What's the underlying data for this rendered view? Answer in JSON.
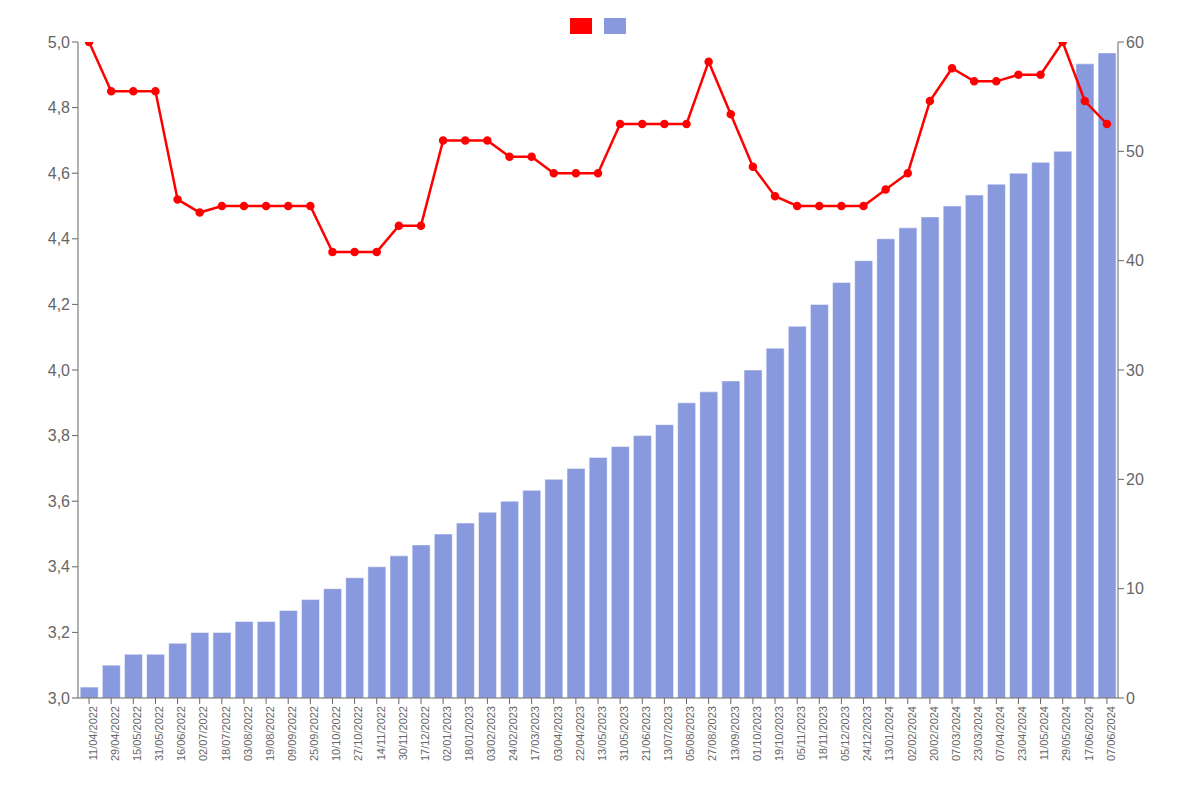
{
  "chart_data": {
    "type": "bar",
    "categories": [
      "11/04/2022",
      "29/04/2022",
      "15/05/2022",
      "31/05/2022",
      "16/06/2022",
      "02/07/2022",
      "18/07/2022",
      "03/08/2022",
      "19/08/2022",
      "09/09/2022",
      "25/09/2022",
      "10/10/2022",
      "27/10/2022",
      "14/11/2022",
      "30/11/2022",
      "17/12/2022",
      "02/01/2023",
      "18/01/2023",
      "03/02/2023",
      "24/02/2023",
      "17/03/2023",
      "03/04/2023",
      "22/04/2023",
      "13/05/2023",
      "31/05/2023",
      "21/06/2023",
      "13/07/2023",
      "05/08/2023",
      "27/08/2023",
      "13/09/2023",
      "01/10/2023",
      "19/10/2023",
      "05/11/2023",
      "18/11/2023",
      "05/12/2023",
      "24/12/2023",
      "13/01/2024",
      "02/02/2024",
      "20/02/2024",
      "07/03/2024",
      "23/03/2024",
      "07/04/2024",
      "23/04/2024",
      "11/05/2024",
      "29/05/2024",
      "17/06/2024",
      "07/06/2024"
    ],
    "series": [
      {
        "type": "line",
        "color": "#ff0000",
        "marker": "circle",
        "values": [
          5.0,
          4.85,
          4.85,
          4.85,
          4.52,
          4.48,
          4.5,
          4.5,
          4.5,
          4.5,
          4.5,
          4.36,
          4.36,
          4.36,
          4.44,
          4.44,
          4.7,
          4.7,
          4.7,
          4.65,
          4.65,
          4.6,
          4.6,
          4.6,
          4.75,
          4.75,
          4.75,
          4.75,
          4.94,
          4.78,
          4.62,
          4.53,
          4.5,
          4.5,
          4.5,
          4.5,
          4.55,
          4.6,
          4.82,
          4.92,
          4.88,
          4.88,
          4.9,
          4.9,
          5.0,
          4.82,
          4.75
        ]
      },
      {
        "type": "bar",
        "color": "#8899dd",
        "axis": "y2",
        "values": [
          1,
          3,
          4,
          4,
          5,
          6,
          6,
          7,
          7,
          8,
          9,
          10,
          11,
          12,
          13,
          14,
          15,
          16,
          17,
          18,
          19,
          20,
          21,
          22,
          23,
          24,
          25,
          27,
          28,
          29,
          30,
          32,
          34,
          36,
          38,
          40,
          42,
          43,
          44,
          45,
          46,
          47,
          48,
          49,
          50,
          58,
          59
        ]
      }
    ],
    "ylim": [
      3.0,
      5.0
    ],
    "yticks": [
      {
        "value": 3.0,
        "label": "3,0"
      },
      {
        "value": 3.2,
        "label": "3,2"
      },
      {
        "value": 3.4,
        "label": "3,4"
      },
      {
        "value": 3.6,
        "label": "3,6"
      },
      {
        "value": 3.8,
        "label": "3,8"
      },
      {
        "value": 4.0,
        "label": "4,0"
      },
      {
        "value": 4.2,
        "label": "4,2"
      },
      {
        "value": 4.4,
        "label": "4,4"
      },
      {
        "value": 4.6,
        "label": "4,6"
      },
      {
        "value": 4.8,
        "label": "4,8"
      },
      {
        "value": 5.0,
        "label": "5,0"
      }
    ],
    "y2lim": [
      0,
      60
    ],
    "y2ticks": [
      0,
      10,
      20,
      30,
      40,
      50,
      60
    ],
    "grid": false,
    "legend": "top"
  }
}
